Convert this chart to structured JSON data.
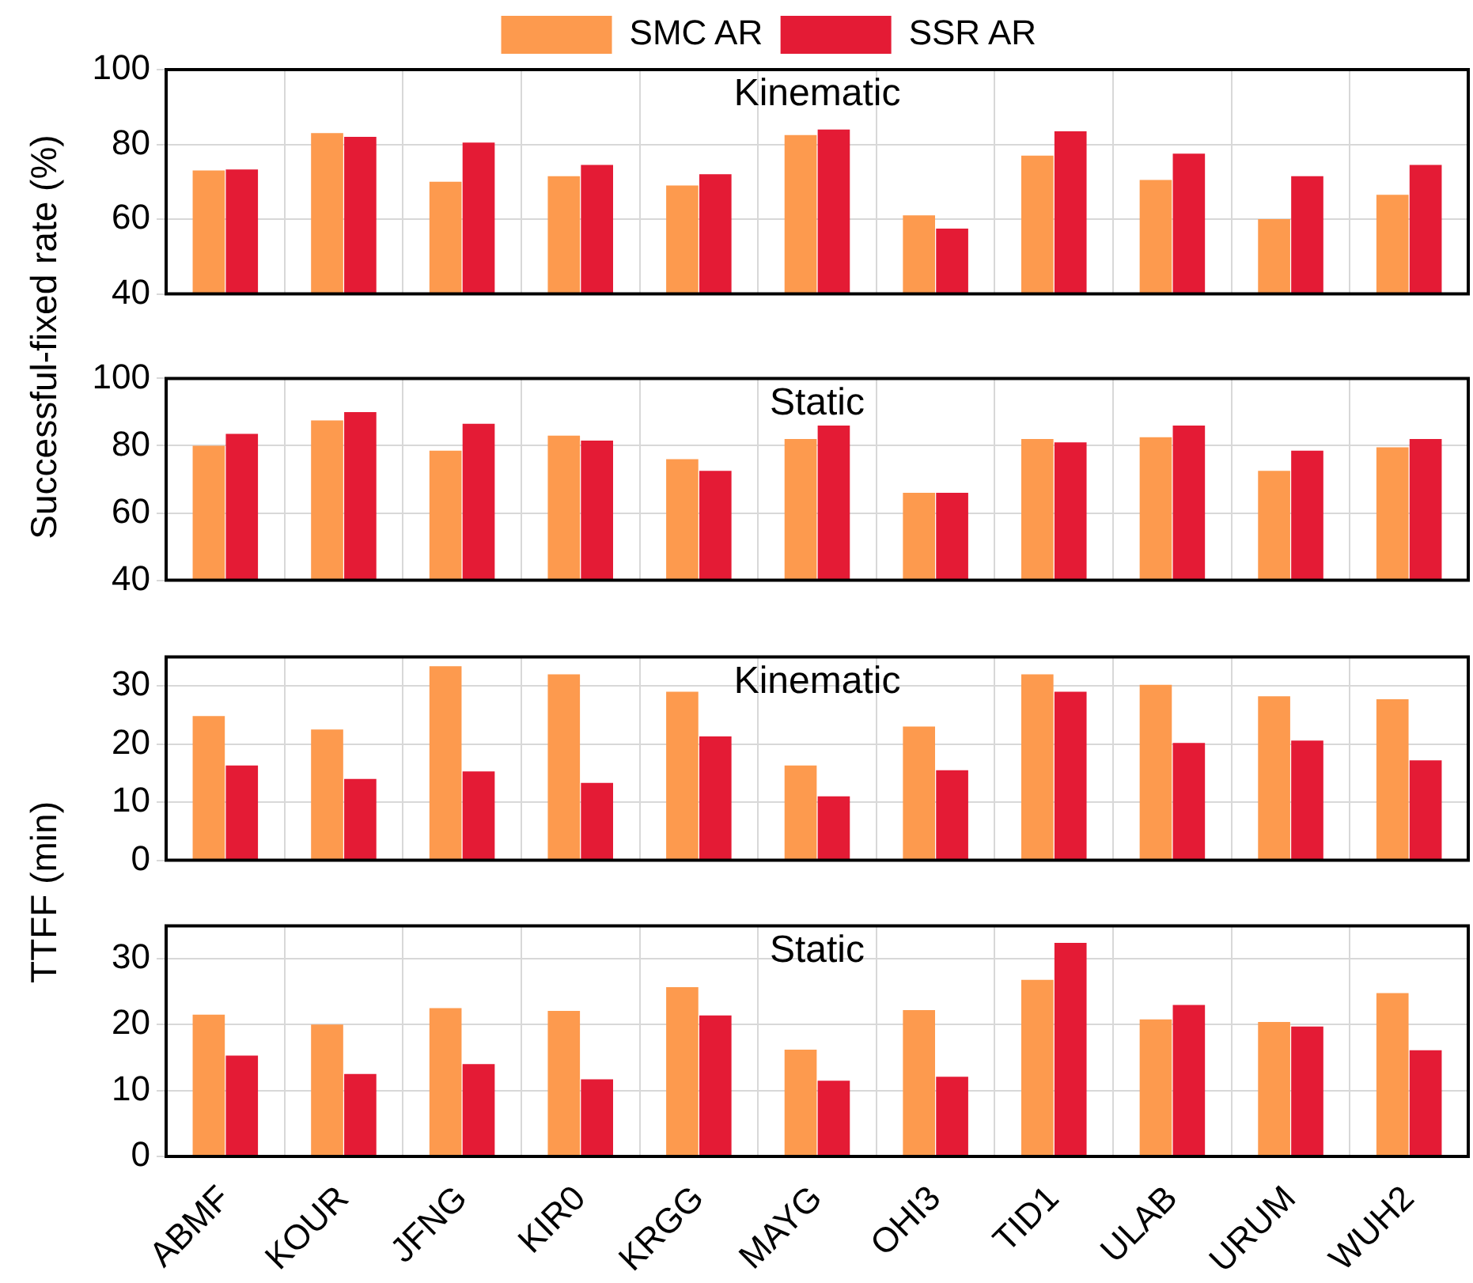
{
  "chart_data": [
    {
      "type": "bar",
      "title": "Kinematic",
      "ylabel": "Successful-fixed rate (%)",
      "categories": [
        null,
        null,
        null,
        null,
        null,
        null,
        null,
        null,
        null,
        null,
        null
      ],
      "series": [
        {
          "name": "SMC AR",
          "color": "#fd9a4e",
          "values": [
            73,
            83,
            70,
            71.5,
            69,
            82.5,
            61,
            77,
            70.5,
            60,
            66.5
          ]
        },
        {
          "name": "SSR AR",
          "color": "#e41b35",
          "values": [
            73.3,
            82,
            80.5,
            74.5,
            72,
            84,
            57.5,
            83.5,
            77.5,
            71.5,
            74.5
          ]
        }
      ],
      "ylim": [
        40,
        100
      ],
      "yticks": [
        40,
        60,
        80,
        100
      ],
      "grid": true,
      "legend": "top",
      "tick_labels": "y"
    },
    {
      "type": "bar",
      "title": "Static",
      "categories": [
        null,
        null,
        null,
        null,
        null,
        null,
        null,
        null,
        null,
        null,
        null
      ],
      "series": [
        {
          "color": "#fd9a4e",
          "values": [
            80,
            87.5,
            78.5,
            83,
            76,
            82,
            66,
            82,
            82.5,
            72.5,
            79.5
          ]
        },
        {
          "color": "#e41b35",
          "values": [
            83.5,
            90,
            86.5,
            81.5,
            72.5,
            86,
            66,
            81,
            86,
            78.5,
            82
          ]
        }
      ],
      "ylim": [
        40,
        100
      ],
      "yticks": [
        40,
        60,
        80,
        100
      ],
      "grid": true,
      "tick_labels": "y"
    },
    {
      "type": "bar",
      "title": "Kinematic",
      "ylabel": "TTFF (min)",
      "categories": [
        null,
        null,
        null,
        null,
        null,
        null,
        null,
        null,
        null,
        null,
        null
      ],
      "series": [
        {
          "color": "#fd9a4e",
          "values": [
            24.8,
            22.5,
            33.4,
            32,
            29,
            16.3,
            23,
            32,
            30.2,
            28.2,
            27.7
          ]
        },
        {
          "color": "#e41b35",
          "values": [
            16.3,
            14,
            15.3,
            13.3,
            21.3,
            11,
            15.5,
            29,
            20.2,
            20.6,
            17.2
          ]
        }
      ],
      "ylim": [
        0,
        35
      ],
      "yticks": [
        0,
        10,
        20,
        30
      ],
      "grid": true,
      "tick_labels": "y"
    },
    {
      "type": "bar",
      "title": "Static",
      "categories": [
        "ABMF",
        "KOUR",
        "JFNG",
        "KIR0",
        "KRGG",
        "MAYG",
        "OHI3",
        "TID1",
        "ULAB",
        "URUM",
        "WUH2"
      ],
      "series": [
        {
          "color": "#fd9a4e",
          "values": [
            21.5,
            20,
            22.5,
            22.1,
            25.7,
            16.2,
            22.2,
            26.8,
            20.8,
            20.4,
            24.8
          ]
        },
        {
          "color": "#e41b35",
          "values": [
            15.3,
            12.5,
            14,
            11.7,
            21.4,
            11.5,
            12.1,
            32.4,
            23,
            19.7,
            16.1
          ]
        }
      ],
      "ylim": [
        0,
        35
      ],
      "yticks": [
        0,
        10,
        20,
        30
      ],
      "grid": true
    }
  ]
}
